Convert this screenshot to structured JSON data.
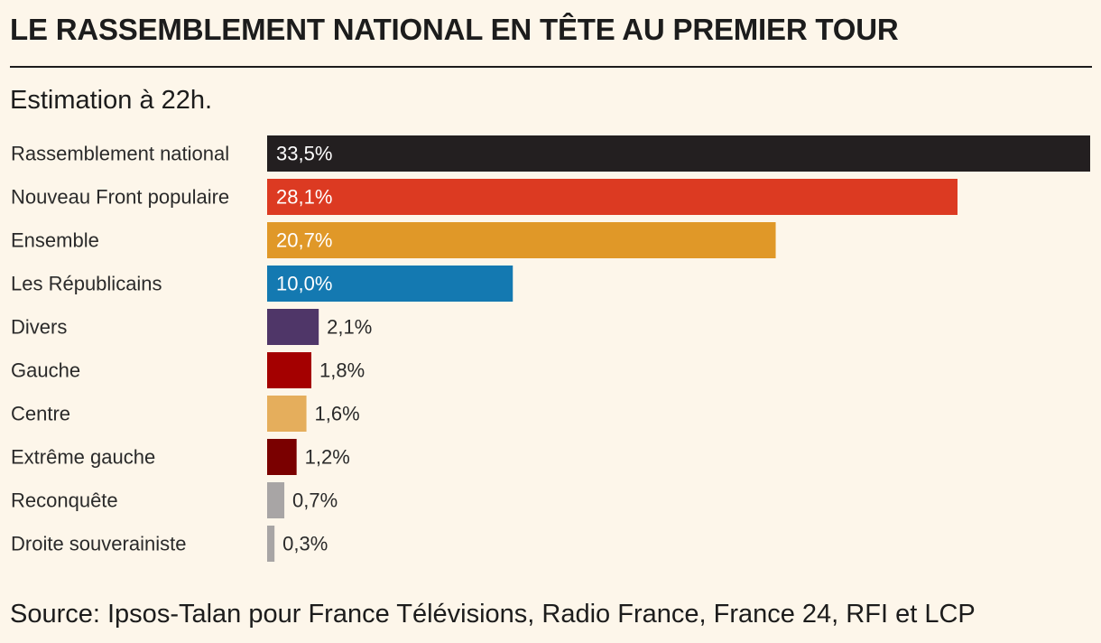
{
  "header": {
    "title": "LE RASSEMBLEMENT NATIONAL EN TÊTE AU PREMIER TOUR",
    "subtitle": "Estimation à 22h."
  },
  "footer": {
    "source": "Source: Ipsos-Talan pour France Télévisions, Radio France, France 24, RFI et LCP"
  },
  "chart_data": {
    "type": "bar",
    "orientation": "horizontal",
    "title": "LE RASSEMBLEMENT NATIONAL EN TÊTE AU PREMIER TOUR",
    "subtitle": "Estimation à 22h.",
    "xlabel": "",
    "ylabel": "",
    "xlim": [
      0,
      33.5
    ],
    "grid": false,
    "categories": [
      "Rassemblement national",
      "Nouveau Front populaire",
      "Ensemble",
      "Les Républicains",
      "Divers",
      "Gauche",
      "Centre",
      "Extrême gauche",
      "Reconquête",
      "Droite souverainiste"
    ],
    "values": [
      33.5,
      28.1,
      20.7,
      10.0,
      2.1,
      1.8,
      1.6,
      1.2,
      0.7,
      0.3
    ],
    "labels": [
      "33,5%",
      "28,1%",
      "20,7%",
      "10,0%",
      "2,1%",
      "1,8%",
      "1,6%",
      "1,2%",
      "0,7%",
      "0,3%"
    ],
    "colors": [
      "#231f20",
      "#dc3a22",
      "#e09828",
      "#1479b1",
      "#4f3668",
      "#a40000",
      "#e5ae5c",
      "#7a0000",
      "#a8a5a5",
      "#a8a5a5"
    ]
  }
}
